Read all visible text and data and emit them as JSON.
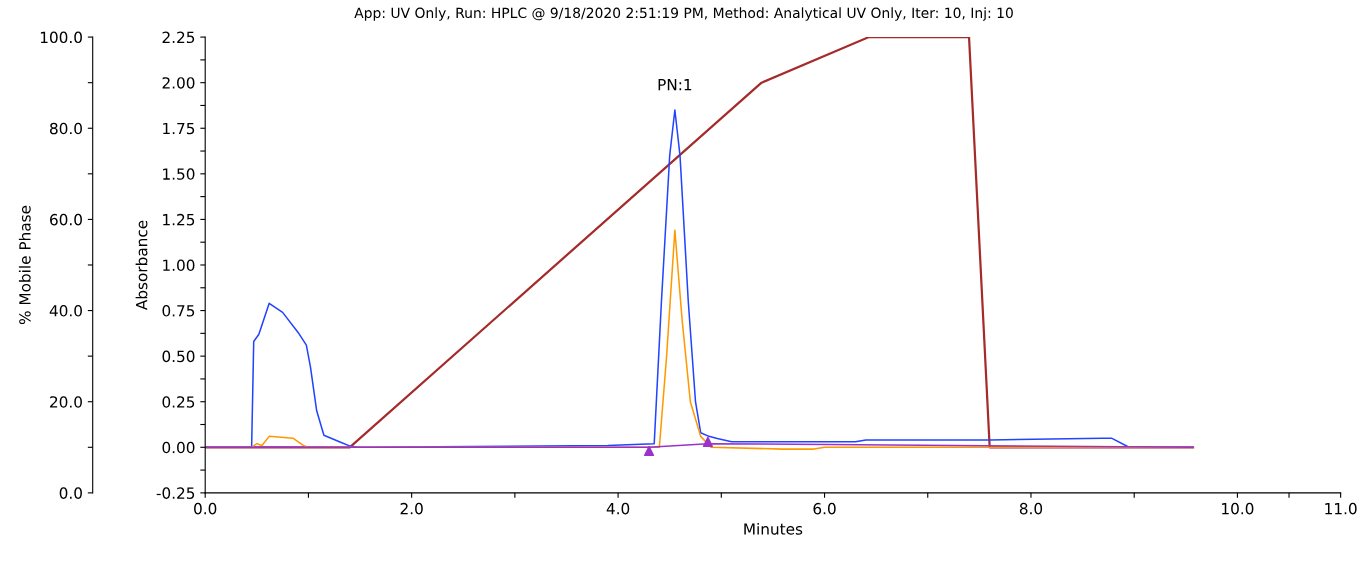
{
  "chart_data": {
    "type": "line",
    "title": "App: UV Only, Run: HPLC @ 9/18/2020 2:51:19 PM, Method: Analytical UV Only, Iter: 10, Inj: 10",
    "xlabel": "Minutes",
    "ylabel": "Absorbance",
    "y2label": "% Mobile Phase",
    "xlim": [
      0,
      11
    ],
    "xticks": [
      {
        "value": 0,
        "label": "0.0"
      },
      {
        "value": 1,
        "label": null
      },
      {
        "value": 2,
        "label": "2.0"
      },
      {
        "value": 3,
        "label": null
      },
      {
        "value": 4,
        "label": "4.0"
      },
      {
        "value": 5,
        "label": null
      },
      {
        "value": 6,
        "label": "6.0"
      },
      {
        "value": 7,
        "label": null
      },
      {
        "value": 8,
        "label": "8.0"
      },
      {
        "value": 9,
        "label": null
      },
      {
        "value": 10,
        "label": "10.0"
      },
      {
        "value": 10.5,
        "label": null
      },
      {
        "value": 11,
        "label": "11.0"
      }
    ],
    "ylim": [
      -0.25,
      2.25
    ],
    "yticks": [
      {
        "value": -0.25,
        "label": "-0.25"
      },
      {
        "value": -0.125,
        "label": null
      },
      {
        "value": 0,
        "label": "0.00"
      },
      {
        "value": 0.125,
        "label": null
      },
      {
        "value": 0.25,
        "label": "0.25"
      },
      {
        "value": 0.375,
        "label": null
      },
      {
        "value": 0.5,
        "label": "0.50"
      },
      {
        "value": 0.625,
        "label": null
      },
      {
        "value": 0.75,
        "label": "0.75"
      },
      {
        "value": 0.875,
        "label": null
      },
      {
        "value": 1.0,
        "label": "1.00"
      },
      {
        "value": 1.125,
        "label": null
      },
      {
        "value": 1.25,
        "label": "1.25"
      },
      {
        "value": 1.375,
        "label": null
      },
      {
        "value": 1.5,
        "label": "1.50"
      },
      {
        "value": 1.625,
        "label": null
      },
      {
        "value": 1.75,
        "label": "1.75"
      },
      {
        "value": 1.875,
        "label": null
      },
      {
        "value": 2.0,
        "label": "2.00"
      },
      {
        "value": 2.125,
        "label": null
      },
      {
        "value": 2.25,
        "label": "2.25"
      }
    ],
    "y2lim": [
      0,
      100
    ],
    "y2ticks": [
      {
        "value": 0,
        "label": "0.0"
      },
      {
        "value": 10,
        "label": null
      },
      {
        "value": 20,
        "label": "20.0"
      },
      {
        "value": 30,
        "label": null
      },
      {
        "value": 40,
        "label": "40.0"
      },
      {
        "value": 50,
        "label": null
      },
      {
        "value": 60,
        "label": "60.0"
      },
      {
        "value": 70,
        "label": null
      },
      {
        "value": 80,
        "label": "80.0"
      },
      {
        "value": 90,
        "label": null
      },
      {
        "value": 100,
        "label": "100.0"
      }
    ],
    "grid": false,
    "legend": false,
    "annotations": [
      {
        "text": "PN:1",
        "x": 4.55,
        "y": 1.85
      }
    ],
    "series": [
      {
        "color": "#2244ff",
        "x": [
          0,
          0.45,
          0.47,
          0.52,
          0.62,
          0.75,
          0.9,
          0.98,
          1.02,
          1.08,
          1.15,
          1.3,
          1.41,
          1.5,
          3.9,
          4.35,
          4.42,
          4.5,
          4.55,
          4.6,
          4.68,
          4.75,
          4.8,
          4.88,
          4.95,
          5.1,
          5.35,
          5.5,
          6.3,
          6.4,
          7.6,
          8.7,
          8.78,
          8.95,
          9.57
        ],
        "values": [
          0,
          0,
          0.58,
          0.62,
          0.79,
          0.74,
          0.63,
          0.56,
          0.44,
          0.2,
          0.066,
          0.03,
          0.005,
          0,
          0.01,
          0.02,
          0.8,
          1.6,
          1.85,
          1.6,
          0.8,
          0.25,
          0.08,
          0.06,
          0.05,
          0.03,
          0.03,
          0.03,
          0.03,
          0.04,
          0.04,
          0.05,
          0.05,
          0,
          0
        ]
      },
      {
        "color": "#ff9900",
        "x": [
          0,
          0.45,
          0.5,
          0.55,
          0.62,
          0.85,
          0.95,
          1.0,
          4.4,
          4.47,
          4.55,
          4.62,
          4.7,
          4.8,
          4.9,
          5.6,
          5.9,
          6.0,
          9.57
        ],
        "values": [
          0,
          0,
          0.02,
          0.01,
          0.06,
          0.05,
          0.01,
          0,
          0,
          0.5,
          1.19,
          0.7,
          0.25,
          0.06,
          0,
          -0.01,
          -0.01,
          0,
          0
        ]
      },
      {
        "color": "#9933cc",
        "x": [
          0,
          4.3,
          4.87,
          9.57
        ],
        "values": [
          0,
          0,
          0.02,
          0
        ]
      },
      {
        "type": "scatter",
        "color": "#9933cc",
        "marker": "triangle",
        "x": [
          4.3,
          4.87
        ],
        "values": [
          -0.02,
          0.03
        ]
      },
      {
        "axis": "y2",
        "color": "#a52a2a",
        "x": [
          0,
          1.4,
          5.39,
          6.43,
          7.4,
          7.6,
          9.57
        ],
        "values": [
          10,
          10,
          90,
          100,
          100,
          10,
          10
        ]
      }
    ]
  }
}
